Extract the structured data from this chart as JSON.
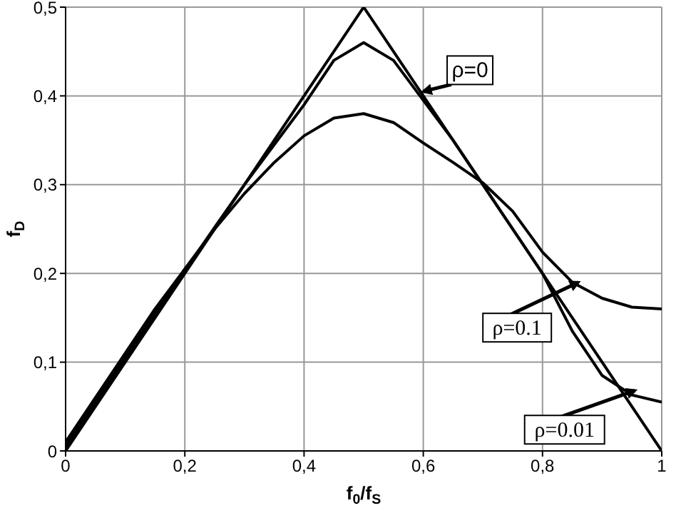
{
  "chart_data": {
    "type": "line",
    "xlabel": "f$_{0}$/f$_{S}$",
    "ylabel": "f$_{D}$",
    "x": [
      0,
      0.05,
      0.1,
      0.15,
      0.2,
      0.25,
      0.3,
      0.35,
      0.4,
      0.45,
      0.5,
      0.55,
      0.6,
      0.65,
      0.7,
      0.75,
      0.8,
      0.85,
      0.9,
      0.95,
      1
    ],
    "series": [
      {
        "name": "ρ=0",
        "color": "#000000",
        "x": [
          0,
          0.5,
          1
        ],
        "values": [
          0,
          0.5,
          0
        ]
      },
      {
        "name": "ρ=0.1",
        "color": "#000000",
        "values": [
          0.01,
          0.06,
          0.11,
          0.16,
          0.205,
          0.25,
          0.29,
          0.325,
          0.355,
          0.375,
          0.38,
          0.37,
          0.347,
          0.325,
          0.302,
          0.27,
          0.224,
          0.19,
          0.172,
          0.162,
          0.16
        ]
      },
      {
        "name": "ρ=0.01",
        "color": "#000000",
        "values": [
          0.005,
          0.055,
          0.105,
          0.155,
          0.203,
          0.252,
          0.3,
          0.345,
          0.39,
          0.44,
          0.46,
          0.44,
          0.395,
          0.35,
          0.3,
          0.25,
          0.2,
          0.135,
          0.085,
          0.063,
          0.055
        ]
      }
    ],
    "xlim": [
      0,
      1
    ],
    "xticks": [
      0,
      {
        "value": 0.2,
        "label": "0,2"
      },
      {
        "value": 0.4,
        "label": "0,4"
      },
      {
        "value": 0.6,
        "label": "0,6"
      },
      {
        "value": 0.8,
        "label": "0,8"
      },
      1
    ],
    "ylim": [
      0,
      0.5
    ],
    "yticks": [
      0,
      {
        "value": 0.1,
        "label": "0,1"
      },
      {
        "value": 0.2,
        "label": "0,2"
      },
      {
        "value": 0.3,
        "label": "0,3"
      },
      {
        "value": 0.4,
        "label": "0,4"
      },
      {
        "value": 0.5,
        "label": "0,5"
      }
    ],
    "grid": true,
    "marker": "none",
    "line_style": "solid"
  }
}
